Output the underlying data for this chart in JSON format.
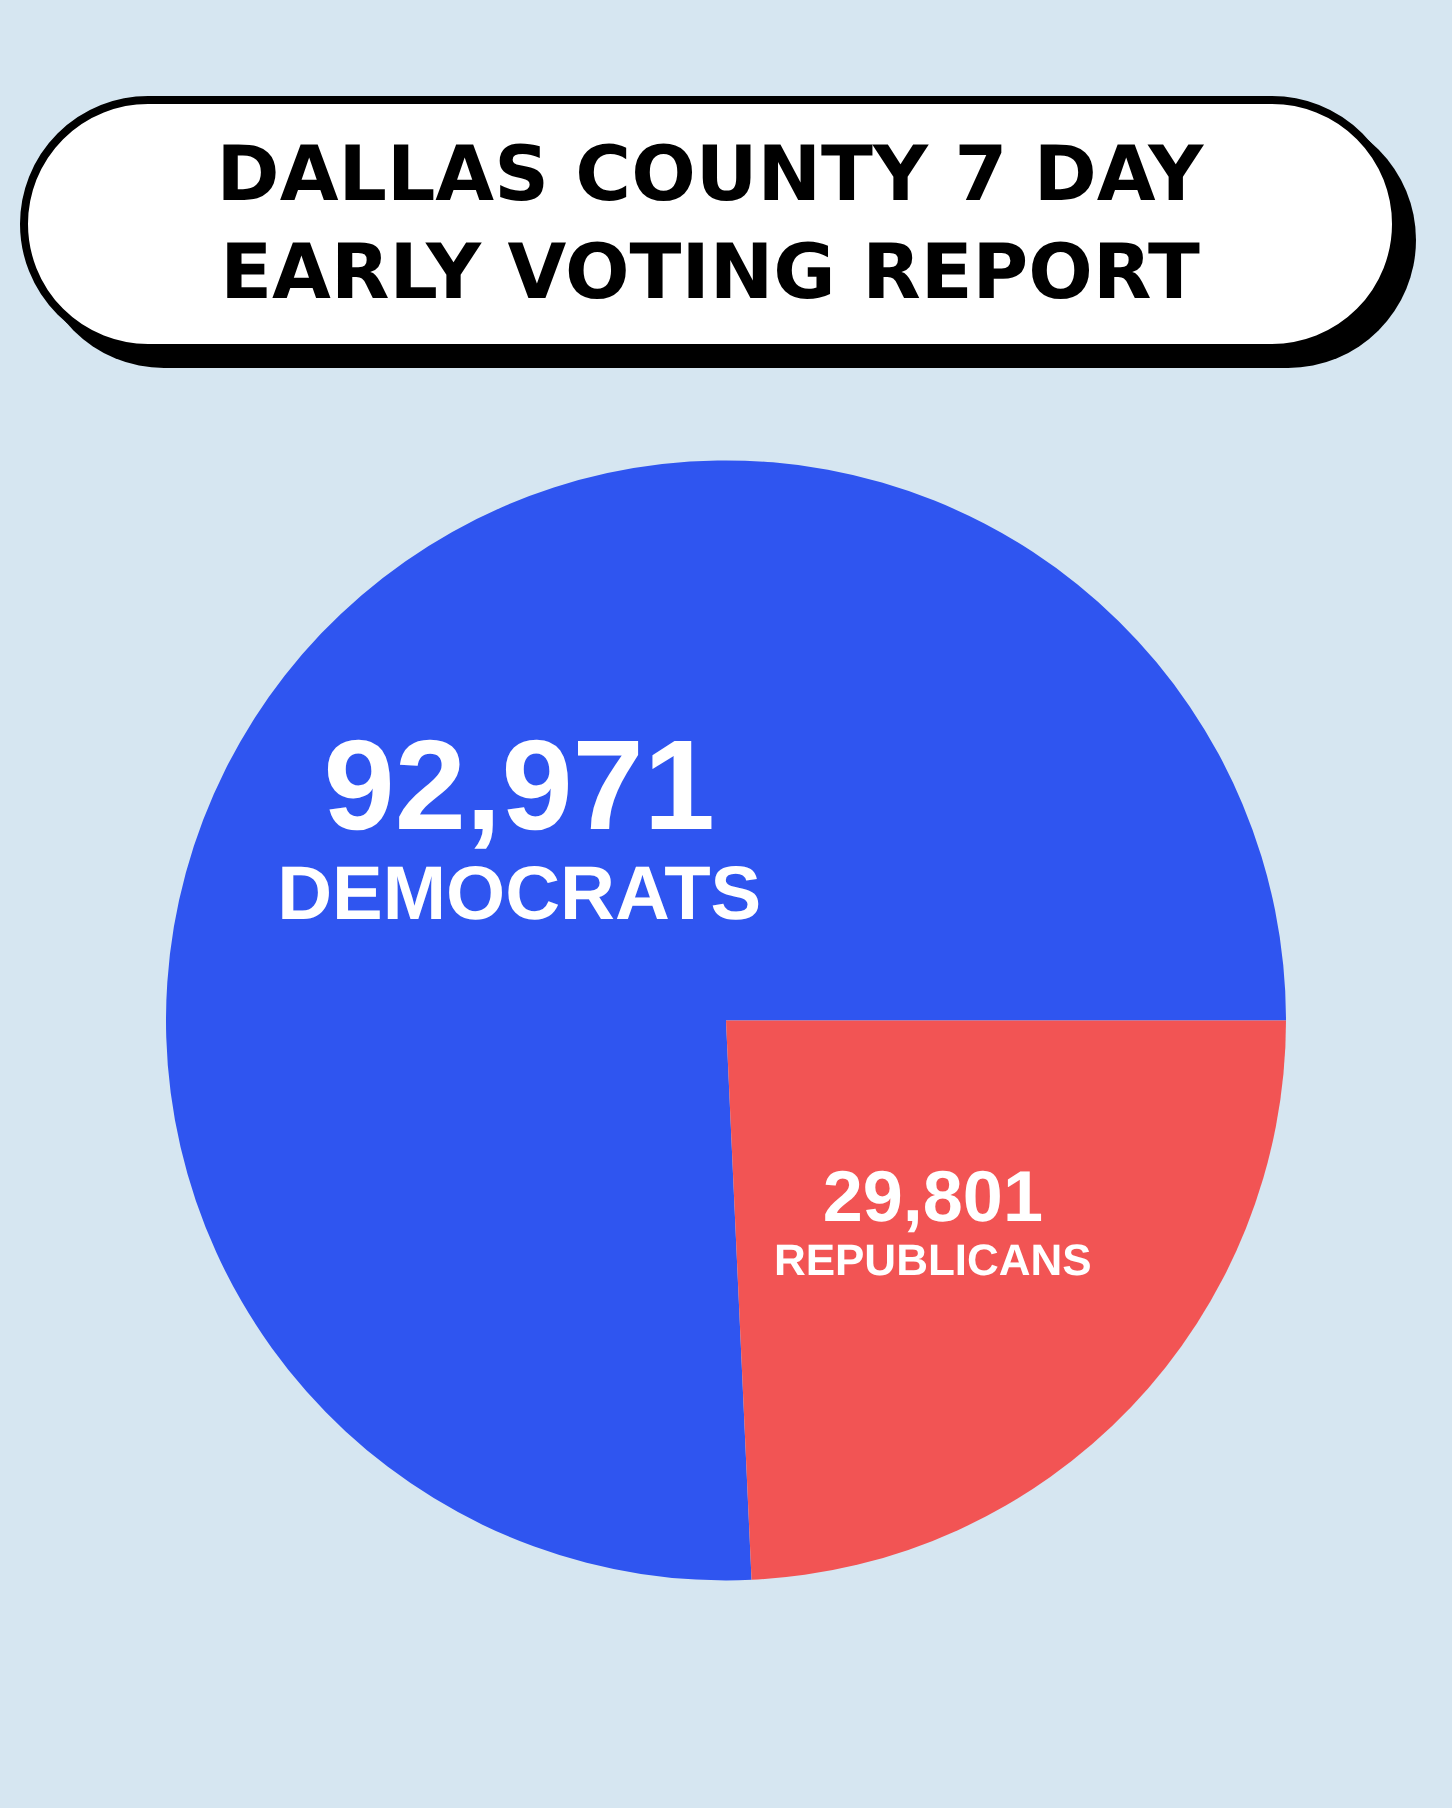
{
  "chart_data": {
    "type": "pie",
    "title": "DALLAS COUNTY 7 DAY EARLY VOTING REPORT",
    "categories": [
      "DEMOCRATS",
      "REPUBLICANS"
    ],
    "values": [
      92971,
      29801
    ],
    "value_labels": [
      "92,971",
      "29,801"
    ],
    "colors": [
      "#2f55f0",
      "#f25454"
    ]
  }
}
